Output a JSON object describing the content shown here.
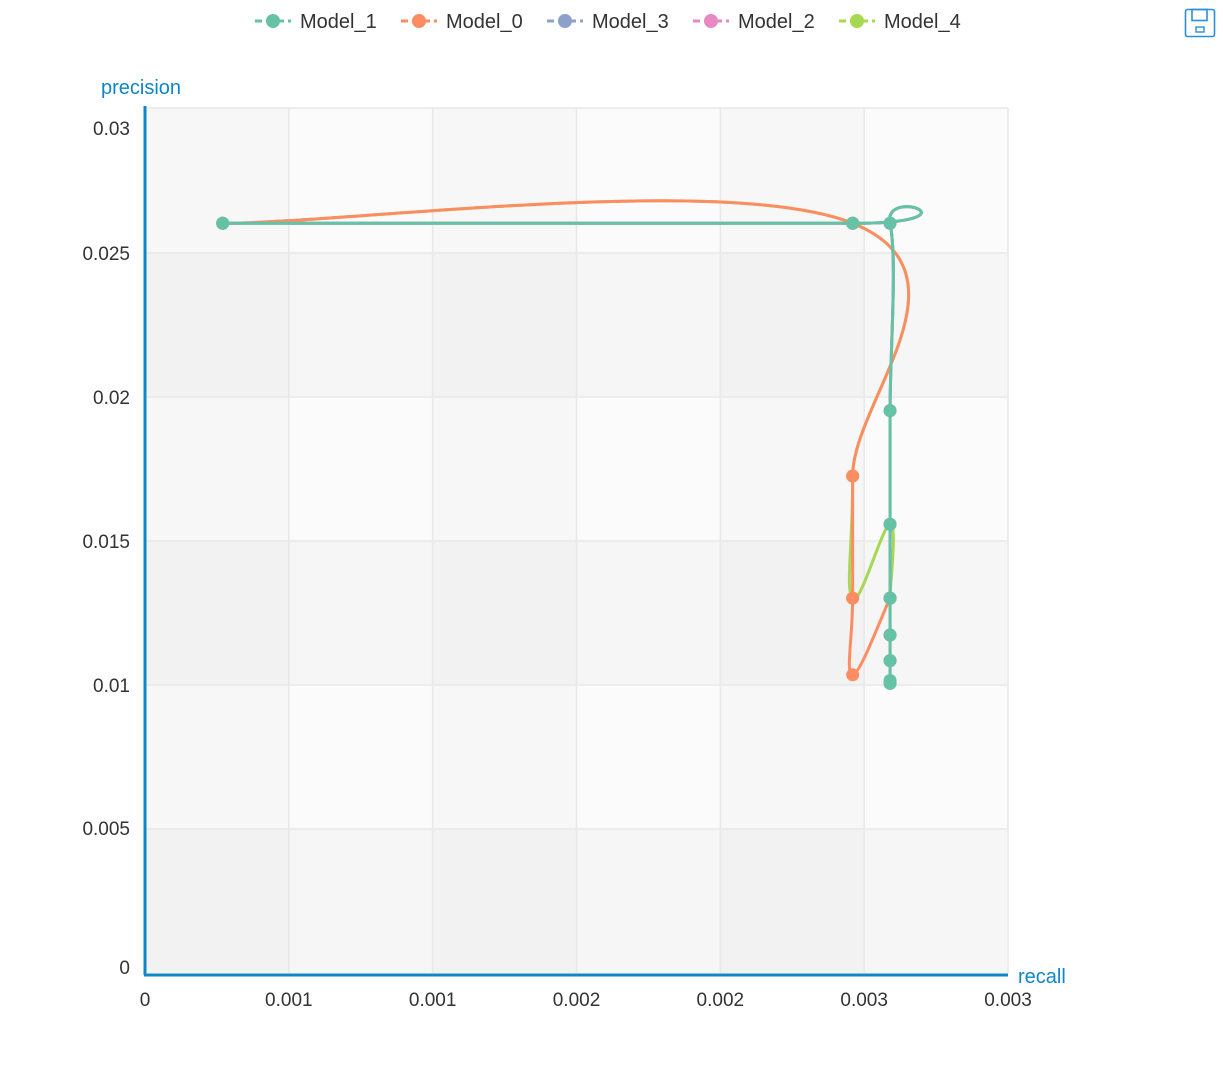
{
  "toolbar": {
    "save_icon": "save-icon"
  },
  "chart_data": {
    "type": "line",
    "smooth": true,
    "xlabel": "recall",
    "ylabel": "precision",
    "xlim": [
      0,
      0.003
    ],
    "ylim": [
      0,
      0.03
    ],
    "x_tick_labels": [
      "0",
      "0.001",
      "0.001",
      "0.002",
      "0.002",
      "0.003",
      "0.003"
    ],
    "y_tick_labels": [
      "0",
      "0.005",
      "0.01",
      "0.015",
      "0.02",
      "0.025",
      "0.03"
    ],
    "legend_position": "top-center",
    "grid": true,
    "series": [
      {
        "name": "Model_1",
        "color": "#66c2a5",
        "points": [
          [
            0.00027,
            0.0264
          ],
          [
            0.00246,
            0.0264
          ],
          [
            0.00259,
            0.0264
          ],
          [
            0.00259,
            0.0198
          ],
          [
            0.00259,
            0.0158
          ],
          [
            0.00259,
            0.0132
          ],
          [
            0.00259,
            0.0119
          ],
          [
            0.00259,
            0.011
          ],
          [
            0.00259,
            0.0103
          ],
          [
            0.00259,
            0.0102
          ]
        ]
      },
      {
        "name": "Model_0",
        "color": "#fc8d62",
        "points": [
          [
            0.00027,
            0.0264
          ],
          [
            0.00246,
            0.0264
          ],
          [
            0.00246,
            0.0175
          ],
          [
            0.00246,
            0.0132
          ],
          [
            0.00246,
            0.0105
          ],
          [
            0.00259,
            0.0132
          ]
        ]
      },
      {
        "name": "Model_3",
        "color": "#8da0cb",
        "points": [
          [
            0.00027,
            0.0264
          ],
          [
            0.00246,
            0.0264
          ],
          [
            0.00259,
            0.0264
          ],
          [
            0.00259,
            0.0198
          ],
          [
            0.00259,
            0.0158
          ],
          [
            0.00259,
            0.0132
          ],
          [
            0.00259,
            0.0119
          ],
          [
            0.00259,
            0.011
          ],
          [
            0.00259,
            0.0102
          ]
        ]
      },
      {
        "name": "Model_2",
        "color": "#e78ac3",
        "points": [
          [
            0.00027,
            0.0264
          ],
          [
            0.00246,
            0.0264
          ],
          [
            0.00259,
            0.0264
          ],
          [
            0.00259,
            0.0198
          ],
          [
            0.00259,
            0.0158
          ],
          [
            0.00259,
            0.0132
          ],
          [
            0.00259,
            0.0119
          ],
          [
            0.00259,
            0.011
          ],
          [
            0.00259,
            0.0102
          ]
        ]
      },
      {
        "name": "Model_4",
        "color": "#a6d854",
        "points": [
          [
            0.00027,
            0.0264
          ],
          [
            0.00246,
            0.0264
          ],
          [
            0.00246,
            0.0175
          ],
          [
            0.00246,
            0.0132
          ],
          [
            0.00259,
            0.0158
          ],
          [
            0.00259,
            0.0132
          ]
        ]
      }
    ]
  }
}
